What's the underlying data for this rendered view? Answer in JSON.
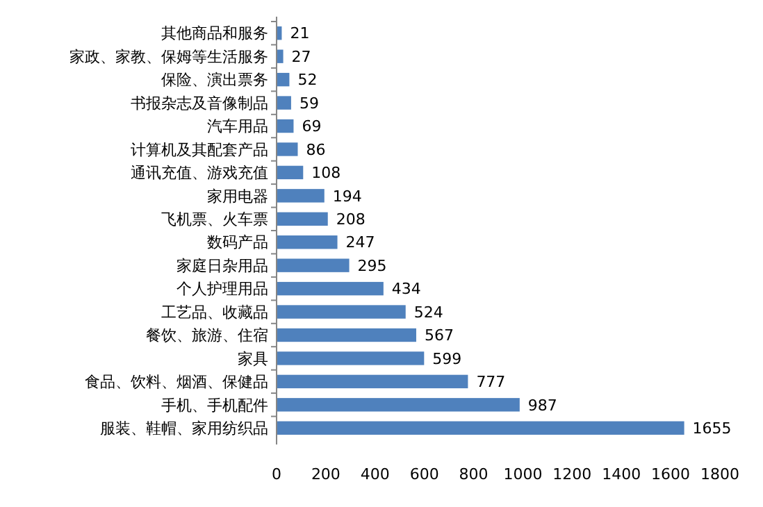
{
  "chart_data": {
    "type": "bar",
    "orientation": "horizontal",
    "categories": [
      "其他商品和服务",
      "家政、家教、保姆等生活服务",
      "保险、演出票务",
      "书报杂志及音像制品",
      "汽车用品",
      "计算机及其配套产品",
      "通讯充值、游戏充值",
      "家用电器",
      "飞机票、火车票",
      "数码产品",
      "家庭日杂用品",
      "个人护理用品",
      "工艺品、收藏品",
      "餐饮、旅游、住宿",
      "家具",
      "食品、饮料、烟酒、保健品",
      "手机、手机配件",
      "服装、鞋帽、家用纺织品"
    ],
    "values": [
      21,
      27,
      52,
      59,
      69,
      86,
      108,
      194,
      208,
      247,
      295,
      434,
      524,
      567,
      599,
      777,
      987,
      1655
    ],
    "color": "#4f81bd",
    "xlim": [
      0,
      1800
    ],
    "xticks": [
      0,
      200,
      400,
      600,
      800,
      1000,
      1200,
      1400,
      1600,
      1800
    ],
    "grid": false,
    "data_labels": true
  }
}
